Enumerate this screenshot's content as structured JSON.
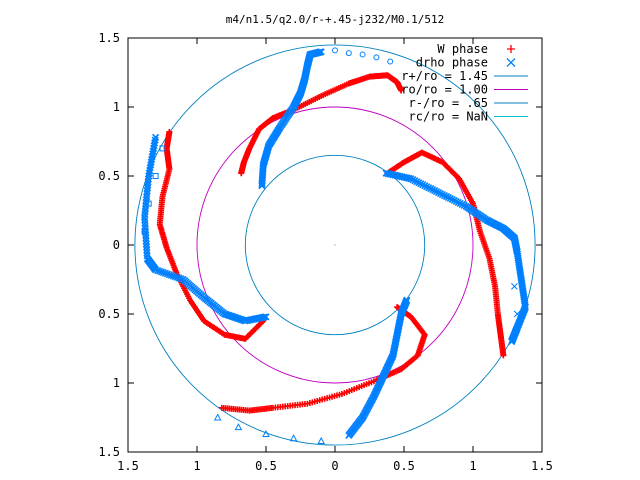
{
  "chart_data": {
    "type": "scatter",
    "title": "m4/n1.5/q2.0/r-+.45-j232/M0.1/512",
    "xlim": [
      -1.5,
      1.5
    ],
    "ylim": [
      -1.5,
      1.5
    ],
    "x_tick_labels": [
      "1.5",
      "1",
      "0.5",
      "0",
      "0.5",
      "1",
      "1.5"
    ],
    "y_tick_labels": [
      "1.5",
      "1",
      "0.5",
      "0",
      "0.5",
      "1",
      "1.5"
    ],
    "x_tick_values": [
      -1.5,
      -1.0,
      -0.5,
      0,
      0.5,
      1.0,
      1.5
    ],
    "y_tick_values": [
      1.5,
      1.0,
      0.5,
      0,
      -0.5,
      -1.0,
      -1.5
    ],
    "grid": false,
    "legend_position": "top-right",
    "legend": [
      {
        "label": "W phase",
        "marker": "+",
        "color": "#ff0000"
      },
      {
        "label": "drho phase",
        "marker": "x",
        "color": "#0080ff"
      },
      {
        "label": "r+/ro = 1.45",
        "marker": "line",
        "color": "#0080c0"
      },
      {
        "label": "ro/ro = 1.00",
        "marker": "line",
        "color": "#c000c0"
      },
      {
        "label": "r-/ro = .65",
        "marker": "line",
        "color": "#0080c0"
      },
      {
        "label": "rc/ro = NaN",
        "marker": "line",
        "color": "#00c0c0"
      }
    ],
    "circles": [
      {
        "name": "r+/ro",
        "radius": 1.45,
        "color": "#0080c0"
      },
      {
        "name": "ro/ro",
        "radius": 1.0,
        "color": "#c000c0"
      },
      {
        "name": "r-/ro",
        "radius": 0.65,
        "color": "#0080c0"
      }
    ],
    "series": [
      {
        "name": "W phase",
        "color": "#ff0000",
        "arms": [
          [
            [
              0.38,
              0.52
            ],
            [
              0.5,
              0.6
            ],
            [
              0.63,
              0.67
            ],
            [
              0.78,
              0.6
            ],
            [
              0.9,
              0.48
            ],
            [
              1.0,
              0.3
            ],
            [
              1.05,
              0.1
            ],
            [
              1.12,
              -0.1
            ],
            [
              1.16,
              -0.3
            ],
            [
              1.18,
              -0.5
            ],
            [
              1.2,
              -0.65
            ],
            [
              1.22,
              -0.8
            ]
          ],
          [
            [
              0.48,
              1.12
            ],
            [
              0.45,
              1.18
            ],
            [
              0.38,
              1.23
            ],
            [
              0.25,
              1.22
            ],
            [
              0.1,
              1.17
            ],
            [
              -0.1,
              1.08
            ],
            [
              -0.3,
              0.98
            ],
            [
              -0.45,
              0.92
            ],
            [
              -0.55,
              0.84
            ],
            [
              -0.62,
              0.7
            ],
            [
              -0.66,
              0.6
            ],
            [
              -0.68,
              0.52
            ]
          ],
          [
            [
              -1.2,
              0.82
            ],
            [
              -1.22,
              0.7
            ],
            [
              -1.2,
              0.55
            ],
            [
              -1.25,
              0.35
            ],
            [
              -1.27,
              0.15
            ],
            [
              -1.22,
              -0.02
            ],
            [
              -1.15,
              -0.2
            ],
            [
              -1.05,
              -0.4
            ],
            [
              -0.95,
              -0.55
            ],
            [
              -0.8,
              -0.65
            ],
            [
              -0.65,
              -0.68
            ],
            [
              -0.52,
              -0.55
            ]
          ],
          [
            [
              0.45,
              -0.45
            ],
            [
              0.55,
              -0.52
            ],
            [
              0.65,
              -0.65
            ],
            [
              0.6,
              -0.8
            ],
            [
              0.48,
              -0.9
            ],
            [
              0.3,
              -0.98
            ],
            [
              0.05,
              -1.08
            ],
            [
              -0.2,
              -1.15
            ],
            [
              -0.45,
              -1.18
            ],
            [
              -0.62,
              -1.2
            ],
            [
              -0.82,
              -1.18
            ]
          ]
        ]
      },
      {
        "name": "drho phase",
        "color": "#0080ff",
        "arms": [
          [
            [
              0.37,
              0.52
            ],
            [
              0.55,
              0.48
            ],
            [
              0.75,
              0.38
            ],
            [
              0.95,
              0.28
            ],
            [
              1.1,
              0.18
            ],
            [
              1.22,
              0.12
            ],
            [
              1.3,
              0.05
            ],
            [
              1.32,
              -0.05
            ],
            [
              1.35,
              -0.25
            ],
            [
              1.38,
              -0.45
            ],
            [
              1.32,
              -0.6
            ],
            [
              1.28,
              -0.7
            ]
          ],
          [
            [
              -0.53,
              0.43
            ],
            [
              -0.52,
              0.58
            ],
            [
              -0.48,
              0.72
            ],
            [
              -0.4,
              0.85
            ],
            [
              -0.3,
              1.0
            ],
            [
              -0.25,
              1.1
            ],
            [
              -0.22,
              1.2
            ],
            [
              -0.2,
              1.3
            ],
            [
              -0.18,
              1.38
            ],
            [
              -0.1,
              1.4
            ]
          ],
          [
            [
              -1.3,
              0.78
            ],
            [
              -1.35,
              0.5
            ],
            [
              -1.38,
              0.2
            ],
            [
              -1.36,
              -0.1
            ],
            [
              -1.3,
              -0.18
            ],
            [
              -1.1,
              -0.25
            ],
            [
              -0.95,
              -0.38
            ],
            [
              -0.8,
              -0.5
            ],
            [
              -0.65,
              -0.55
            ],
            [
              -0.5,
              -0.52
            ]
          ],
          [
            [
              0.52,
              -0.4
            ],
            [
              0.48,
              -0.5
            ],
            [
              0.45,
              -0.65
            ],
            [
              0.42,
              -0.8
            ],
            [
              0.35,
              -0.95
            ],
            [
              0.28,
              -1.1
            ],
            [
              0.2,
              -1.25
            ],
            [
              0.1,
              -1.38
            ]
          ]
        ]
      }
    ],
    "outer_markers": [
      {
        "symbol": "circle",
        "points": [
          [
            0.0,
            1.41
          ],
          [
            0.1,
            1.39
          ],
          [
            0.2,
            1.38
          ],
          [
            0.3,
            1.36
          ],
          [
            0.4,
            1.33
          ]
        ]
      },
      {
        "symbol": "square",
        "points": [
          [
            -1.25,
            0.7
          ],
          [
            -1.3,
            0.5
          ],
          [
            -1.35,
            0.3
          ],
          [
            -1.38,
            0.1
          ]
        ]
      },
      {
        "symbol": "triangle",
        "points": [
          [
            -0.85,
            -1.25
          ],
          [
            -0.7,
            -1.32
          ],
          [
            -0.5,
            -1.37
          ],
          [
            -0.3,
            -1.4
          ],
          [
            -0.1,
            -1.42
          ]
        ]
      },
      {
        "symbol": "x",
        "points": [
          [
            1.3,
            -0.3
          ],
          [
            1.32,
            -0.5
          ],
          [
            1.28,
            -0.7
          ]
        ]
      }
    ]
  }
}
